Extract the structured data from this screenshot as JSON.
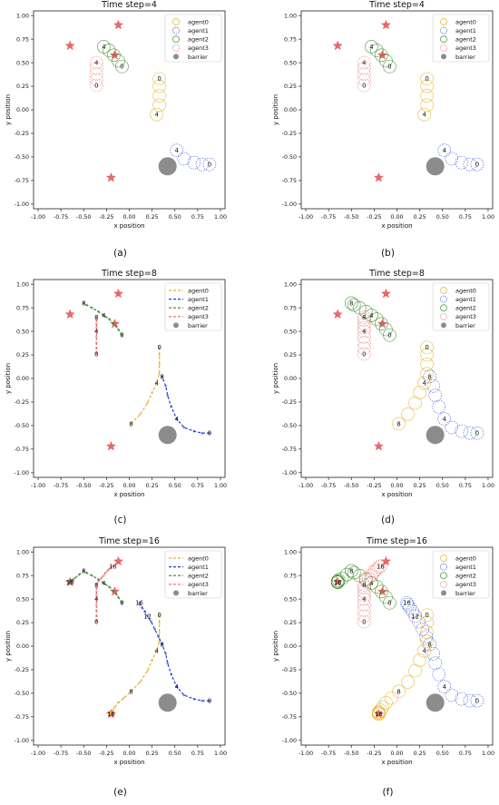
{
  "figure": {
    "subplots": [
      {
        "label": "(a)",
        "title": "Time step=4",
        "mode": "circles",
        "step": 4
      },
      {
        "label": "(b)",
        "title": "Time step=4",
        "mode": "circles",
        "step": 4
      },
      {
        "label": "(c)",
        "title": "Time step=8",
        "mode": "dashed",
        "step": 8
      },
      {
        "label": "(d)",
        "title": "Time step=8",
        "mode": "circles",
        "step": 8
      },
      {
        "label": "(e)",
        "title": "Time step=16",
        "mode": "dashed",
        "step": 16
      },
      {
        "label": "(f)",
        "title": "Time step=16",
        "mode": "circles",
        "step": 16
      }
    ]
  },
  "chart_data": {
    "type": "line",
    "xlabel": "x position",
    "ylabel": "y position",
    "xlim": [
      -1.05,
      1.05
    ],
    "ylim": [
      -1.05,
      1.05
    ],
    "xticks": [
      "-1.00",
      "-0.75",
      "-0.50",
      "-0.25",
      "0.00",
      "0.25",
      "0.50",
      "0.75",
      "1.00"
    ],
    "yticks": [
      "1.00",
      "0.75",
      "0.50",
      "0.25",
      "0.00",
      "-0.25",
      "-0.50",
      "-0.75",
      "-1.00"
    ],
    "legend_position": "top-right",
    "goals": [
      [
        -0.65,
        0.68
      ],
      [
        -0.12,
        0.9
      ],
      [
        -0.16,
        0.58
      ],
      [
        -0.2,
        -0.72
      ]
    ],
    "barrier": {
      "name": "barrier",
      "x": 0.42,
      "y": -0.6,
      "color": "#8c8c8c"
    },
    "series": [
      {
        "name": "agent0",
        "color": "#e4b020",
        "x": [
          0.33,
          0.33,
          0.33,
          0.33,
          0.3,
          0.25,
          0.2,
          0.12,
          0.02,
          -0.06,
          -0.12,
          -0.16,
          -0.18,
          -0.2,
          -0.2,
          -0.2,
          -0.2
        ],
        "y": [
          0.33,
          0.25,
          0.15,
          0.05,
          -0.05,
          -0.15,
          -0.26,
          -0.38,
          -0.48,
          -0.55,
          -0.6,
          -0.65,
          -0.68,
          -0.7,
          -0.71,
          -0.72,
          -0.72
        ],
        "labels_by_step": {
          "4": {
            "0": "0",
            "4": "4"
          },
          "8": {
            "0": "0",
            "4": "4",
            "8": "8"
          },
          "16": {
            "0": "0",
            "4": "4",
            "8": "8",
            "16": "16"
          }
        },
        "labels_panel_b": {
          "0": "0",
          "4": "4"
        }
      },
      {
        "name": "agent1",
        "color": "#1f3fd0",
        "x": [
          0.88,
          0.8,
          0.71,
          0.6,
          0.52,
          0.46,
          0.42,
          0.4,
          0.36,
          0.32,
          0.28,
          0.24,
          0.2,
          0.17,
          0.14,
          0.12,
          0.11
        ],
        "y": [
          -0.58,
          -0.58,
          -0.56,
          -0.52,
          -0.43,
          -0.3,
          -0.18,
          -0.08,
          0.02,
          0.1,
          0.18,
          0.26,
          0.32,
          0.37,
          0.41,
          0.44,
          0.46
        ],
        "labels_by_step": {
          "4": {
            "0": "0",
            "4": "4"
          },
          "8": {
            "0": "0",
            "4": "4",
            "8": "8"
          },
          "16": {
            "0": "0",
            "4": "4",
            "8": "8",
            "12": "12",
            "16": "16"
          }
        }
      },
      {
        "name": "agent2",
        "color": "#2e8a1e",
        "x": [
          -0.08,
          -0.12,
          -0.17,
          -0.22,
          -0.28,
          -0.34,
          -0.41,
          -0.47,
          -0.5,
          -0.55,
          -0.6,
          -0.64,
          -0.65,
          -0.65,
          -0.65,
          -0.65,
          -0.65
        ],
        "y": [
          0.46,
          0.52,
          0.58,
          0.63,
          0.67,
          0.71,
          0.75,
          0.78,
          0.8,
          0.76,
          0.72,
          0.7,
          0.69,
          0.68,
          0.68,
          0.68,
          0.68
        ],
        "labels_by_step": {
          "4": {
            "0": "0",
            "4": "4"
          },
          "8": {
            "0": "0",
            "4": "4",
            "8": "8"
          },
          "16": {
            "0": "0",
            "4": "4",
            "8": "8",
            "16": "16"
          }
        }
      },
      {
        "name": "agent3",
        "color": "#e86a6a",
        "x": [
          -0.36,
          -0.36,
          -0.36,
          -0.36,
          -0.36,
          -0.36,
          -0.36,
          -0.36,
          -0.36,
          -0.34,
          -0.31,
          -0.28,
          -0.26,
          -0.24,
          -0.22,
          -0.2,
          -0.18
        ],
        "y": [
          0.26,
          0.32,
          0.38,
          0.44,
          0.5,
          0.54,
          0.58,
          0.62,
          0.65,
          0.69,
          0.72,
          0.75,
          0.78,
          0.8,
          0.82,
          0.84,
          0.85
        ],
        "labels_by_step": {
          "4": {
            "0": "0",
            "4": "4"
          },
          "8": {
            "0": "0",
            "4": "4",
            "8": "8"
          },
          "16": {
            "0": "0",
            "4": "4",
            "8": "8",
            "16": "16"
          }
        }
      }
    ]
  }
}
